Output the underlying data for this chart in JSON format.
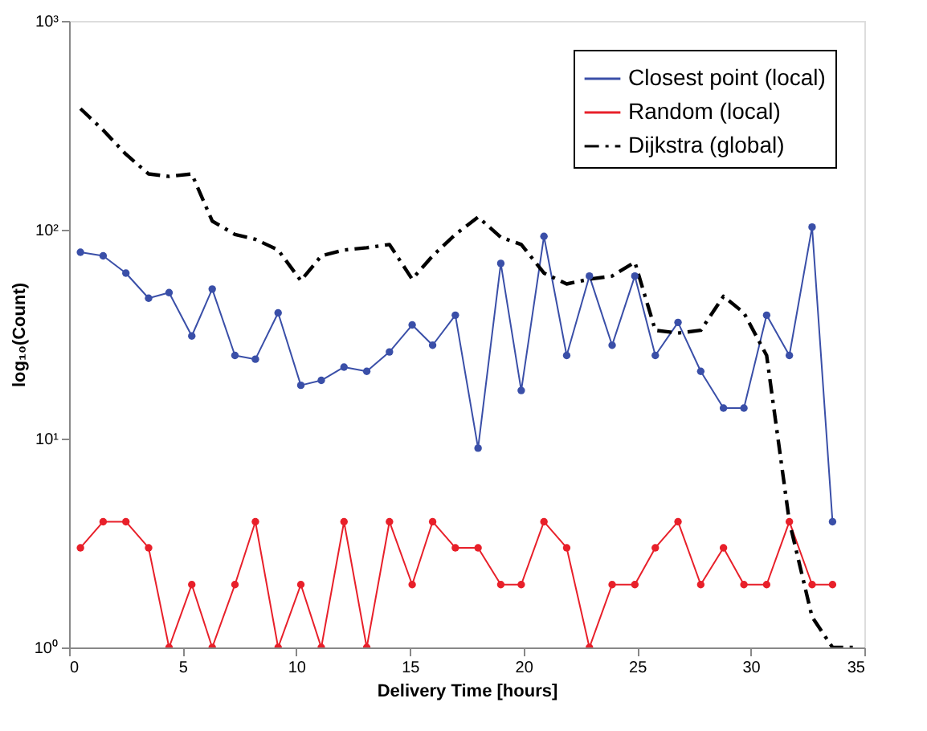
{
  "chart_data": {
    "type": "line",
    "xlabel": "Delivery Time [hours]",
    "ylabel": "log₁₀(Count)",
    "log": "y",
    "grid": false,
    "legend": "top right",
    "xlim": [
      0,
      35
    ],
    "xticks": [
      0,
      5,
      10,
      15,
      20,
      25,
      30,
      35
    ],
    "ylim": [
      1,
      1000
    ],
    "yticks": [
      {
        "value": 1,
        "label": "10⁰"
      },
      {
        "value": 10,
        "label": "10¹"
      },
      {
        "value": 100,
        "label": "10²"
      },
      {
        "value": 1000,
        "label": "10³"
      }
    ],
    "x": [
      0.5,
      1.5,
      2.5,
      3.5,
      4.4,
      5.4,
      6.3,
      7.3,
      8.2,
      9.2,
      10.2,
      11.1,
      12.1,
      13.1,
      14.1,
      15.1,
      16.0,
      17.0,
      18.0,
      19.0,
      19.9,
      20.9,
      21.9,
      22.9,
      23.9,
      24.9,
      25.8,
      26.8,
      27.8,
      28.8,
      29.7,
      30.7,
      31.7,
      32.7,
      33.6
    ],
    "series": [
      {
        "name": "Closest point (local)",
        "color": "#3a4fa8",
        "marker": "circle",
        "line_style": "solid",
        "values": [
          78,
          75,
          62,
          47,
          50,
          31,
          52,
          25,
          24,
          40,
          18,
          19,
          22,
          21,
          26,
          35,
          28,
          39,
          9,
          69,
          17,
          93,
          25,
          60,
          28,
          60,
          25,
          36,
          21,
          14,
          14,
          39,
          25,
          103,
          4
        ]
      },
      {
        "name": "Random (local)",
        "color": "#e8202a",
        "marker": "circle",
        "line_style": "solid",
        "values": [
          3,
          4,
          4,
          3,
          1,
          2,
          1,
          2,
          4,
          1,
          2,
          1,
          4,
          1,
          4,
          2,
          4,
          3,
          3,
          2,
          2,
          4,
          3,
          1,
          2,
          2,
          3,
          4,
          2,
          3,
          2,
          2,
          4,
          2,
          2
        ]
      },
      {
        "name": "Dijkstra (global)",
        "color": "#000000",
        "marker": "none",
        "line_style": "dashed",
        "x": [
          0.5,
          1.5,
          2.5,
          3.5,
          4.4,
          5.4,
          6.3,
          7.3,
          8.2,
          9.2,
          10.2,
          11.1,
          12.1,
          13.1,
          14.1,
          15.1,
          16.0,
          17.0,
          18.0,
          19.0,
          19.9,
          20.9,
          21.9,
          22.9,
          23.9,
          24.9,
          25.8,
          26.8,
          27.8,
          28.8,
          29.7,
          30.7,
          31.7,
          32.7,
          33.6,
          34.5
        ],
        "values": [
          380,
          300,
          230,
          185,
          180,
          185,
          110,
          95,
          90,
          80,
          57,
          75,
          80,
          82,
          85,
          58,
          75,
          95,
          115,
          92,
          85,
          62,
          55,
          58,
          60,
          70,
          33,
          32,
          33,
          48,
          40,
          25,
          4,
          1.4,
          1,
          1
        ]
      }
    ]
  }
}
